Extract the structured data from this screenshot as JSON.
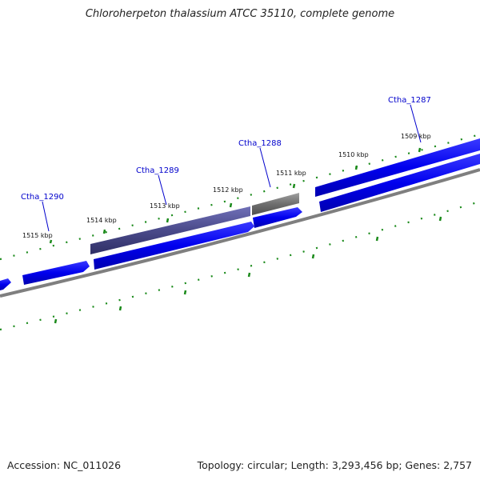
{
  "title": "Chloroherpeton thalassium ATCC 35110, complete genome",
  "accession": "Accession: NC_011026",
  "summary": "Topology: circular; Length: 3,293,456 bp; Genes: 2,757",
  "ticks": [
    {
      "label": "1515 kbp"
    },
    {
      "label": "1514 kbp"
    },
    {
      "label": "1513 kbp"
    },
    {
      "label": "1512 kbp"
    },
    {
      "label": "1511 kbp"
    },
    {
      "label": "1510 kbp"
    },
    {
      "label": "1509 kbp"
    }
  ],
  "genes": [
    {
      "label": "Ctha_1290"
    },
    {
      "label": "Ctha_1289"
    },
    {
      "label": "Ctha_1288"
    },
    {
      "label": "Ctha_1287"
    }
  ],
  "colors": {
    "gene_blue": "#0000ee",
    "gene_purple": "#4a4a8a",
    "gene_gray": "#6e6e6e",
    "backbone": "#7f7f7f",
    "tick_green": "#1a8a1a",
    "label_blue": "#0000cc"
  }
}
